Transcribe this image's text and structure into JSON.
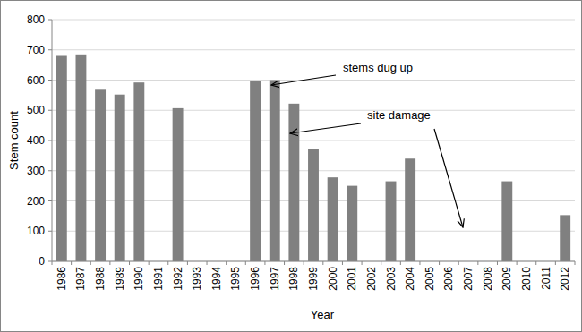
{
  "chart_data": {
    "type": "bar",
    "x_label": "Year",
    "y_label": "Stem count",
    "categories": [
      "1986",
      "1987",
      "1988",
      "1989",
      "1990",
      "1991",
      "1992",
      "1993",
      "1994",
      "1995",
      "1996",
      "1997",
      "1998",
      "1999",
      "2000",
      "2001",
      "2002",
      "2003",
      "2004",
      "2005",
      "2006",
      "2007",
      "2008",
      "2009",
      "2010",
      "2011",
      "2012"
    ],
    "values": [
      680,
      685,
      568,
      552,
      592,
      null,
      507,
      null,
      null,
      null,
      598,
      600,
      522,
      373,
      278,
      250,
      null,
      265,
      340,
      null,
      null,
      null,
      null,
      265,
      null,
      null,
      153
    ],
    "color": "#808080",
    "ylim": [
      0,
      800
    ],
    "yticks": [
      0,
      100,
      200,
      300,
      400,
      500,
      600,
      700,
      800
    ],
    "grid": true,
    "annotations": [
      {
        "text": "stems dug up"
      },
      {
        "text": "site damage"
      }
    ]
  }
}
